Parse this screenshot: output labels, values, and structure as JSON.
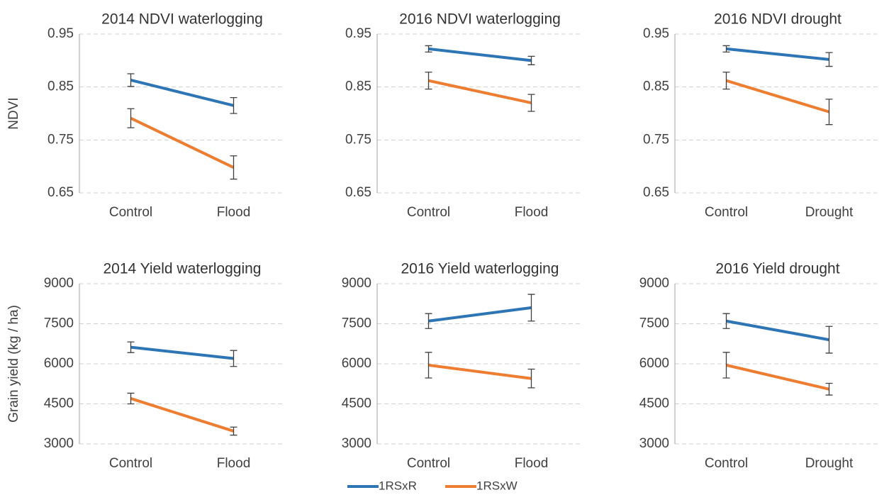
{
  "legend": [
    {
      "name": "1RSxR",
      "color": "#2e75b6"
    },
    {
      "name": "1RSxW",
      "color": "#ed7d31"
    }
  ],
  "chart_data": [
    {
      "type": "line",
      "title": "2014 NDVI waterlogging",
      "ylabel": "NDVI",
      "categories": [
        "Control",
        "Flood"
      ],
      "ylim": [
        0.65,
        0.95
      ],
      "yticks": [
        0.65,
        0.75,
        0.85,
        0.95
      ],
      "grid": true,
      "series": [
        {
          "values": [
            0.863,
            0.815
          ],
          "errors": [
            0.012,
            0.015
          ]
        },
        {
          "values": [
            0.791,
            0.698
          ],
          "errors": [
            0.018,
            0.022
          ]
        }
      ]
    },
    {
      "type": "line",
      "title": "2016 NDVI waterlogging",
      "categories": [
        "Control",
        "Flood"
      ],
      "ylim": [
        0.65,
        0.95
      ],
      "yticks": [
        0.65,
        0.75,
        0.85,
        0.95
      ],
      "grid": true,
      "series": [
        {
          "values": [
            0.922,
            0.9
          ],
          "errors": [
            0.006,
            0.008
          ]
        },
        {
          "values": [
            0.862,
            0.82
          ],
          "errors": [
            0.016,
            0.016
          ]
        }
      ]
    },
    {
      "type": "line",
      "title": "2016 NDVI drought",
      "categories": [
        "Control",
        "Drought"
      ],
      "ylim": [
        0.65,
        0.95
      ],
      "yticks": [
        0.65,
        0.75,
        0.85,
        0.95
      ],
      "grid": true,
      "series": [
        {
          "values": [
            0.922,
            0.902
          ],
          "errors": [
            0.006,
            0.013
          ]
        },
        {
          "values": [
            0.862,
            0.803
          ],
          "errors": [
            0.016,
            0.024
          ]
        }
      ]
    },
    {
      "type": "line",
      "title": "2014 Yield waterlogging",
      "ylabel": "Grain yield (kg / ha)",
      "categories": [
        "Control",
        "Flood"
      ],
      "ylim": [
        3000,
        9000
      ],
      "yticks": [
        3000,
        4500,
        6000,
        7500,
        9000
      ],
      "grid": true,
      "series": [
        {
          "values": [
            6620,
            6200
          ],
          "errors": [
            200,
            300
          ]
        },
        {
          "values": [
            4700,
            3480
          ],
          "errors": [
            200,
            150
          ]
        }
      ]
    },
    {
      "type": "line",
      "title": "2016 Yield waterlogging",
      "categories": [
        "Control",
        "Flood"
      ],
      "ylim": [
        3000,
        9000
      ],
      "yticks": [
        3000,
        4500,
        6000,
        7500,
        9000
      ],
      "grid": true,
      "series": [
        {
          "values": [
            7600,
            8100
          ],
          "errors": [
            280,
            500
          ]
        },
        {
          "values": [
            5950,
            5450
          ],
          "errors": [
            480,
            350
          ]
        }
      ]
    },
    {
      "type": "line",
      "title": "2016 Yield drought",
      "categories": [
        "Control",
        "Drought"
      ],
      "ylim": [
        3000,
        9000
      ],
      "yticks": [
        3000,
        4500,
        6000,
        7500,
        9000
      ],
      "grid": true,
      "series": [
        {
          "values": [
            7600,
            6900
          ],
          "errors": [
            280,
            500
          ]
        },
        {
          "values": [
            5950,
            5050
          ],
          "errors": [
            480,
            220
          ]
        }
      ]
    }
  ]
}
